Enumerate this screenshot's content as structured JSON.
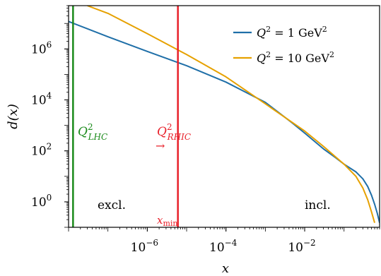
{
  "chart_data": {
    "type": "line",
    "xlabel": "x",
    "ylabel": "d(x)",
    "xscale": "log",
    "yscale": "log",
    "xlim": [
      1e-08,
      0.8
    ],
    "ylim": [
      0.1,
      50000000.0
    ],
    "x_ticks": [
      {
        "value": 1e-06,
        "base": "10",
        "exp": "−6"
      },
      {
        "value": 0.0001,
        "base": "10",
        "exp": "−4"
      },
      {
        "value": 0.01,
        "base": "10",
        "exp": "−2"
      }
    ],
    "y_ticks": [
      {
        "value": 1,
        "base": "10",
        "exp": "0"
      },
      {
        "value": 100,
        "base": "10",
        "exp": "2"
      },
      {
        "value": 10000,
        "base": "10",
        "exp": "4"
      },
      {
        "value": 1000000,
        "base": "10",
        "exp": "6"
      }
    ],
    "grid": false,
    "legend_position": "top-right",
    "series": [
      {
        "name": "Q² = 1 GeV²",
        "legend_q": "Q",
        "legend_exp": "2",
        "legend_mid": " = 1 GeV",
        "legend_unit_exp": "2",
        "color": "#1f6fa8",
        "points": [
          [
            1e-08,
            12000000.0
          ],
          [
            1e-07,
            3000000.0
          ],
          [
            1e-06,
            800000.0
          ],
          [
            1e-05,
            220000.0
          ],
          [
            0.0001,
            50000.0
          ],
          [
            0.001,
            8000.0
          ],
          [
            0.005,
            1200.0
          ],
          [
            0.01,
            500
          ],
          [
            0.03,
            120
          ],
          [
            0.06,
            55
          ],
          [
            0.1,
            30
          ],
          [
            0.2,
            15
          ],
          [
            0.3,
            8
          ],
          [
            0.4,
            4
          ],
          [
            0.5,
            1.8
          ],
          [
            0.6,
            0.8
          ],
          [
            0.7,
            0.35
          ],
          [
            0.8,
            0.15
          ]
        ]
      },
      {
        "name": "Q² = 10 GeV²",
        "legend_q": "Q",
        "legend_exp": "2",
        "legend_mid": " = 10 GeV",
        "legend_unit_exp": "2",
        "color": "#e6a100",
        "points": [
          [
            3e-08,
            50000000.0
          ],
          [
            1e-07,
            25000000.0
          ],
          [
            1e-06,
            4000000.0
          ],
          [
            1e-05,
            600000.0
          ],
          [
            0.0001,
            80000.0
          ],
          [
            0.001,
            7000.0
          ],
          [
            0.01,
            600
          ],
          [
            0.03,
            150
          ],
          [
            0.1,
            30
          ],
          [
            0.2,
            10
          ],
          [
            0.3,
            3.5
          ],
          [
            0.4,
            1.2
          ],
          [
            0.5,
            0.4
          ],
          [
            0.6,
            0.15
          ]
        ]
      }
    ],
    "vlines": [
      {
        "x": 1.3e-08,
        "color": "#1a8a1a",
        "label_q": "Q",
        "label_exp": "2",
        "label_sub": "LHC"
      },
      {
        "x": 6e-06,
        "color": "#e8202a",
        "label_q": "Q",
        "label_exp": "2",
        "label_sub": "RHIC",
        "arrow": "→"
      }
    ],
    "annotations": {
      "excl": "excl.",
      "incl": "incl.",
      "xmin_main": "x",
      "xmin_sub": "min"
    }
  }
}
